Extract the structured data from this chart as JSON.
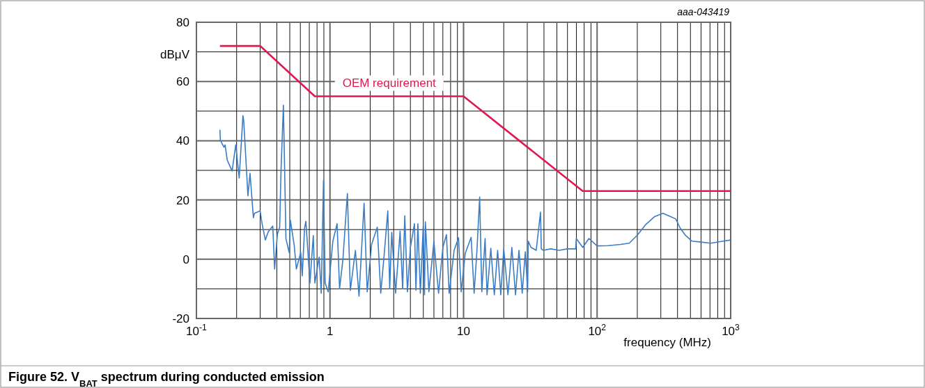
{
  "chart_data": {
    "type": "line",
    "title": "Figure 52.  V$_{BAT}$ spectrum during conducted emission",
    "xlabel": "frequency (MHz)",
    "ylabel": "dBμV",
    "annotations": [
      "aaa-043419"
    ],
    "log": "x",
    "grid": true,
    "marker": "none",
    "line_style": "solid",
    "xlim": [
      0.1,
      1000
    ],
    "ylim": [
      -20,
      80
    ],
    "xticks": [
      {
        "value": 0.1,
        "label": "10$^{-1}$"
      },
      {
        "value": 0.2,
        "label": null
      },
      {
        "value": 0.3,
        "label": null
      },
      {
        "value": 0.4,
        "label": null
      },
      {
        "value": 0.5,
        "label": null
      },
      {
        "value": 0.6,
        "label": null
      },
      {
        "value": 0.7,
        "label": null
      },
      {
        "value": 0.8,
        "label": null
      },
      {
        "value": 0.9,
        "label": null
      },
      1,
      {
        "value": 2,
        "label": null
      },
      {
        "value": 3,
        "label": null
      },
      {
        "value": 4,
        "label": null
      },
      {
        "value": 5,
        "label": null
      },
      {
        "value": 6,
        "label": null
      },
      {
        "value": 7,
        "label": null
      },
      {
        "value": 8,
        "label": null
      },
      {
        "value": 9,
        "label": null
      },
      10,
      {
        "value": 20,
        "label": null
      },
      {
        "value": 30,
        "label": null
      },
      {
        "value": 40,
        "label": null
      },
      {
        "value": 50,
        "label": null
      },
      {
        "value": 60,
        "label": null
      },
      {
        "value": 70,
        "label": null
      },
      {
        "value": 80,
        "label": null
      },
      {
        "value": 90,
        "label": null
      },
      {
        "value": 100,
        "label": "10$^{2}$"
      },
      {
        "value": 200,
        "label": null
      },
      {
        "value": 300,
        "label": null
      },
      {
        "value": 400,
        "label": null
      },
      {
        "value": 500,
        "label": null
      },
      {
        "value": 600,
        "label": null
      },
      {
        "value": 700,
        "label": null
      },
      {
        "value": 800,
        "label": null
      },
      {
        "value": 900,
        "label": null
      },
      {
        "value": 1000,
        "label": "10$^{3}$"
      }
    ],
    "yticks": [
      -20,
      {
        "value": -10,
        "label": null
      },
      0,
      {
        "value": 10,
        "label": null
      },
      20,
      {
        "value": 30,
        "label": null
      },
      40,
      {
        "value": 50,
        "label": null
      },
      60,
      {
        "value": 70,
        "label": null
      },
      80
    ],
    "series": [
      {
        "color": "#3a7cc6",
        "x": [
          0.15,
          0.151,
          0.161,
          0.164,
          0.17,
          0.185,
          0.197,
          0.209,
          0.223,
          0.226,
          0.243,
          0.252,
          0.267,
          0.272,
          0.3,
          0.31,
          0.328,
          0.345,
          0.373,
          0.385,
          0.404,
          0.42,
          0.43,
          0.448,
          0.468,
          0.495,
          0.505,
          0.54,
          0.56,
          0.604,
          0.62,
          0.645,
          0.66,
          0.708,
          0.75,
          0.77,
          0.83,
          0.86,
          0.894,
          0.92,
          0.97,
          1.05,
          1.13,
          1.18,
          1.25,
          1.35,
          1.42,
          1.55,
          1.65,
          1.8,
          1.9,
          2.05,
          2.26,
          2.4,
          2.55,
          2.71,
          2.8,
          2.9,
          3.1,
          3.35,
          3.5,
          3.63,
          3.8,
          4.0,
          4.29,
          4.4,
          4.55,
          4.75,
          4.99,
          5.1,
          5.18,
          5.5,
          6.0,
          6.5,
          7.0,
          7.45,
          7.8,
          8.5,
          9.17,
          9.6,
          10.3,
          11.4,
          12.0,
          12.6,
          13.2,
          13.7,
          14.5,
          15.0,
          16.0,
          17.0,
          18.0,
          19.0,
          20.0,
          21.5,
          23.0,
          24.5,
          26.0,
          27.5,
          29.0,
          30.2,
          30.5,
          32.0,
          35.0,
          37.7,
          38.2,
          39.6,
          45.0,
          52.0,
          60.0,
          69.2,
          69.8,
          78.0,
          86.9,
          100.0,
          121.0,
          150.0,
          174.0,
          200.0,
          230.0,
          270.0,
          311.0,
          350.0,
          388.0,
          420.0,
          460.0,
          513.0,
          600.0,
          706.0,
          850.0,
          1000.0
        ],
        "values": [
          43.7,
          40.2,
          37.8,
          38.6,
          33.5,
          29.8,
          38.6,
          27.4,
          48.5,
          46.8,
          21.4,
          29.0,
          14.0,
          15.5,
          16.3,
          12.0,
          6.5,
          9.3,
          11.2,
          -3.3,
          8.5,
          10.8,
          30.0,
          52.0,
          6.9,
          2.2,
          13.2,
          4.6,
          -3.3,
          2.3,
          -5.6,
          10.4,
          12.8,
          -8.0,
          8.0,
          -8.0,
          0.7,
          -11.5,
          26.6,
          -8.0,
          -11.0,
          6.0,
          12.0,
          -10.0,
          0.0,
          22.2,
          -10.5,
          3.0,
          -12.5,
          18.9,
          -11.0,
          5.0,
          10.8,
          -11.5,
          2.0,
          16.3,
          -10.0,
          9.1,
          -11.5,
          9.5,
          -10.0,
          14.7,
          -11.0,
          4.0,
          12.0,
          -10.5,
          12.0,
          -11.5,
          11.5,
          -12.0,
          12.6,
          -11.0,
          6.0,
          -11.5,
          4.0,
          8.3,
          -11.5,
          3.0,
          7.3,
          -11.0,
          2.0,
          7.4,
          -11.5,
          3.0,
          21.0,
          -11.0,
          7.0,
          -12.0,
          3.7,
          -12.0,
          3.0,
          -12.0,
          3.5,
          -12.0,
          4.0,
          -12.0,
          3.0,
          -11.5,
          2.5,
          -11.0,
          6.1,
          4.0,
          3.0,
          15.9,
          3.5,
          3.0,
          3.5,
          3.0,
          3.5,
          3.5,
          7.0,
          4.0,
          7.0,
          4.5,
          4.6,
          5.0,
          5.4,
          8.1,
          11.6,
          14.4,
          15.5,
          14.5,
          13.6,
          10.4,
          8.0,
          6.1,
          5.8,
          5.4,
          6.0,
          6.5
        ]
      },
      {
        "name": "OEM requirement",
        "color": "#e1184f",
        "x": [
          0.15,
          0.3,
          0.77,
          10,
          78,
          1000
        ],
        "values": [
          72,
          72,
          55,
          55,
          23,
          23
        ]
      }
    ]
  }
}
